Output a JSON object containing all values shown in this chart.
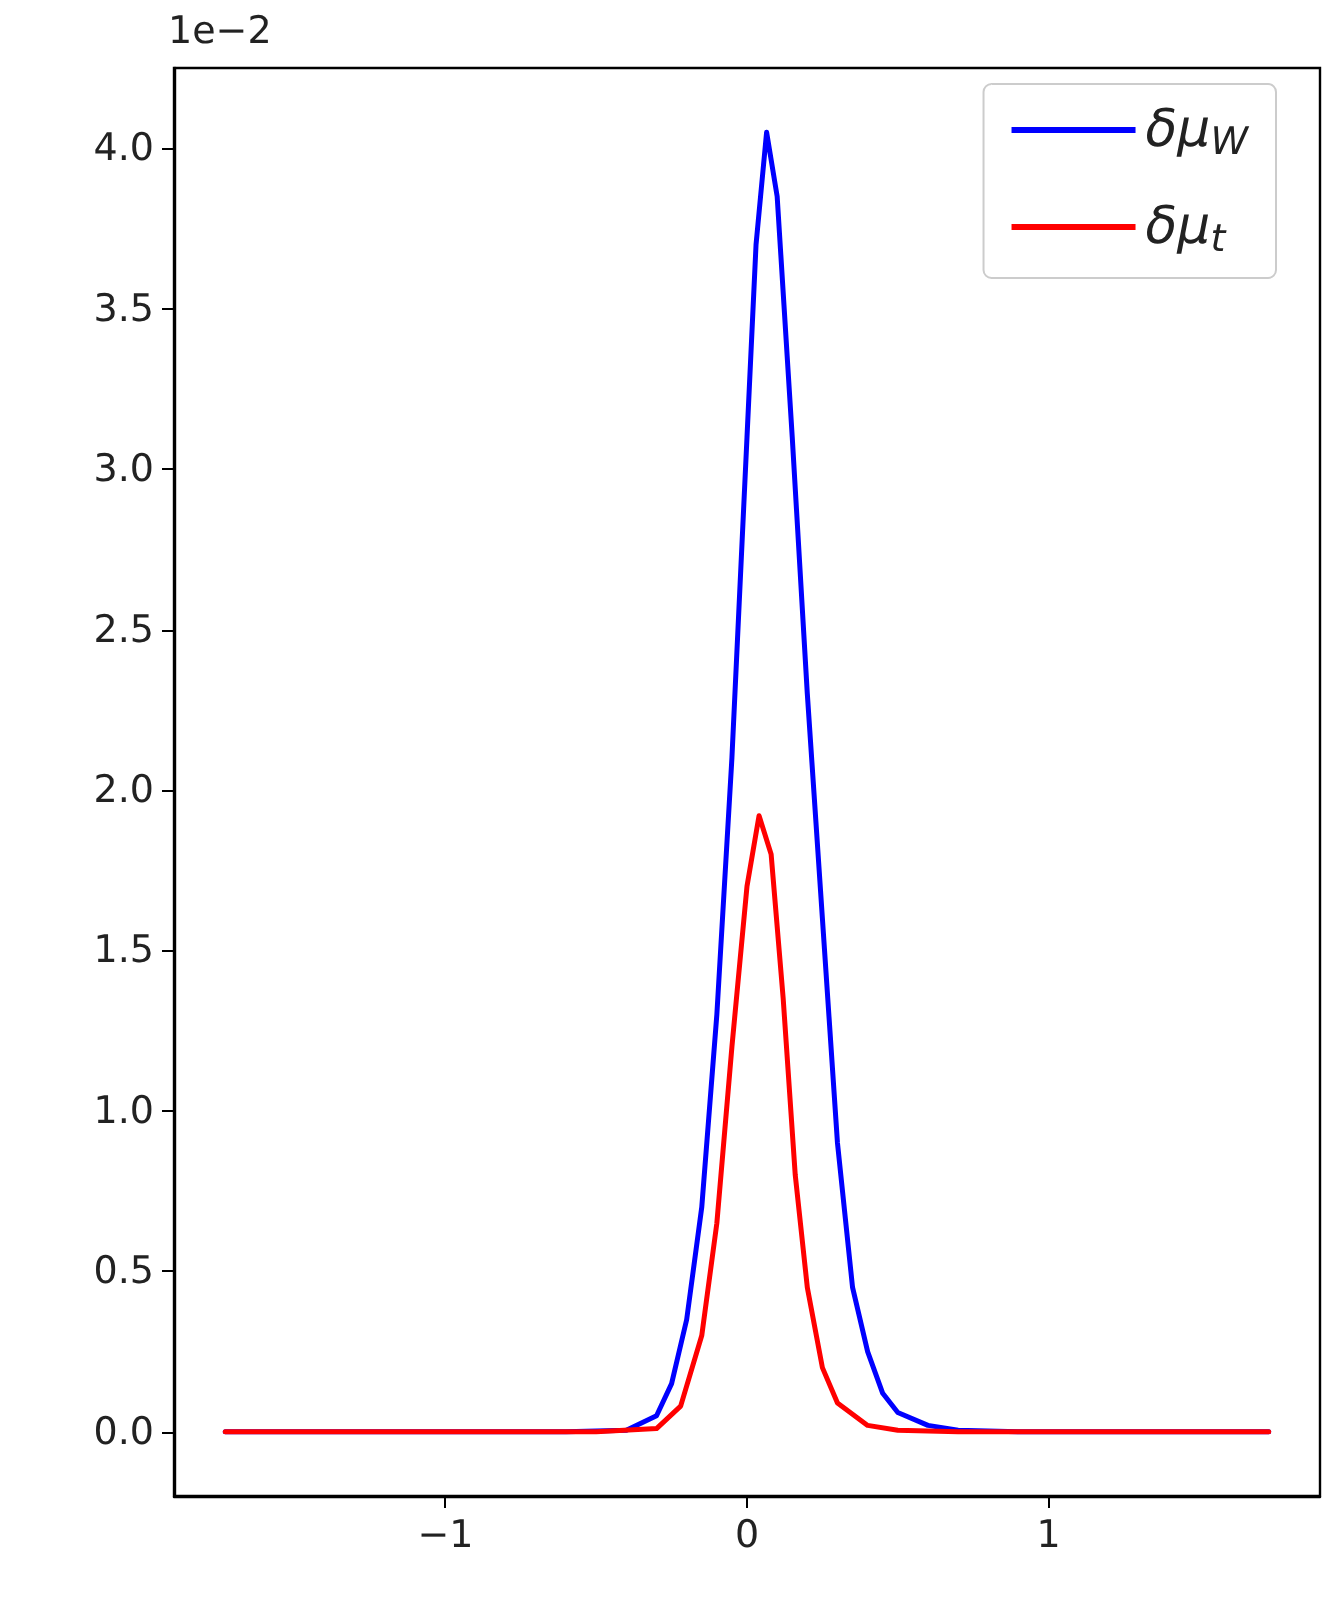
{
  "chart_data": {
    "type": "line",
    "annotations": [
      "1e−2"
    ],
    "series": [
      {
        "name": "δμ$_{W}$",
        "color": "#0000ff",
        "x": [
          -1.73,
          -0.6,
          -0.4,
          -0.3,
          -0.25,
          -0.2,
          -0.15,
          -0.1,
          -0.05,
          0,
          0.03,
          0.065,
          0.1,
          0.15,
          0.2,
          0.25,
          0.3,
          0.35,
          0.4,
          0.45,
          0.5,
          0.6,
          0.7,
          0.9,
          1.73
        ],
        "values": [
          0,
          0,
          0.005,
          0.05,
          0.15,
          0.35,
          0.7,
          1.3,
          2.1,
          3.1,
          3.7,
          4.05,
          3.85,
          3.1,
          2.3,
          1.6,
          0.9,
          0.45,
          0.25,
          0.12,
          0.06,
          0.02,
          0.005,
          0,
          0
        ]
      },
      {
        "name": "δμ$_{t}$",
        "color": "#ff0000",
        "x": [
          -1.73,
          -0.5,
          -0.3,
          -0.22,
          -0.15,
          -0.1,
          -0.05,
          0,
          0.04,
          0.08,
          0.12,
          0.16,
          0.2,
          0.25,
          0.3,
          0.4,
          0.5,
          0.7,
          1.73
        ],
        "values": [
          0,
          0,
          0.01,
          0.08,
          0.3,
          0.65,
          1.2,
          1.7,
          1.92,
          1.8,
          1.35,
          0.8,
          0.45,
          0.2,
          0.09,
          0.02,
          0.005,
          0,
          0
        ]
      }
    ],
    "xlim": [
      -1.9,
      1.9
    ],
    "xticks": [
      {
        "value": -1,
        "label": "−1"
      },
      0,
      1
    ],
    "ylim": [
      -0.2,
      4.25
    ],
    "yticks": [
      {
        "value": 0,
        "label": "0.0"
      },
      {
        "value": 0.5,
        "label": "0.5"
      },
      {
        "value": 1,
        "label": "1.0"
      },
      {
        "value": 1.5,
        "label": "1.5"
      },
      {
        "value": 2,
        "label": "2.0"
      },
      {
        "value": 2.5,
        "label": "2.5"
      },
      {
        "value": 3,
        "label": "3.0"
      },
      {
        "value": 3.5,
        "label": "3.5"
      },
      {
        "value": 4,
        "label": "4.0"
      }
    ],
    "grid": false,
    "legend": "top right",
    "marker": "none",
    "line_style": "solid"
  }
}
